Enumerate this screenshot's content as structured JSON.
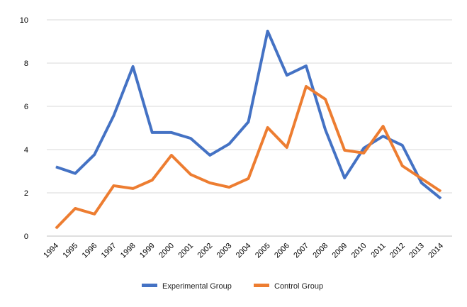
{
  "chart_data": {
    "type": "line",
    "title": "",
    "xlabel": "",
    "ylabel": "",
    "ylim": [
      0,
      10
    ],
    "yticks": [
      "0",
      "2",
      "4",
      "6",
      "8",
      "10"
    ],
    "grid": true,
    "legend_position": "bottom",
    "categories": [
      "1994",
      "1995",
      "1996",
      "1997",
      "1998",
      "1999",
      "2000",
      "2001",
      "2002",
      "2003",
      "2004",
      "2005",
      "2006",
      "2007",
      "2008",
      "2009",
      "2010",
      "2011",
      "2012",
      "2013",
      "2014"
    ],
    "series": [
      {
        "name": "Experimental Group",
        "color": "#4472C4",
        "values": [
          3.2,
          2.9,
          3.77,
          5.57,
          7.84,
          4.79,
          4.79,
          4.52,
          3.74,
          4.26,
          5.28,
          9.48,
          7.44,
          7.87,
          4.92,
          2.69,
          4.07,
          4.62,
          4.2,
          2.46,
          1.74
        ]
      },
      {
        "name": "Control Group",
        "color": "#ED7D31",
        "values": [
          0.36,
          1.28,
          1.02,
          2.33,
          2.2,
          2.59,
          3.74,
          2.85,
          2.46,
          2.26,
          2.66,
          5.02,
          4.1,
          6.92,
          6.33,
          3.97,
          3.84,
          5.08,
          3.25,
          2.66,
          2.07
        ]
      }
    ]
  }
}
